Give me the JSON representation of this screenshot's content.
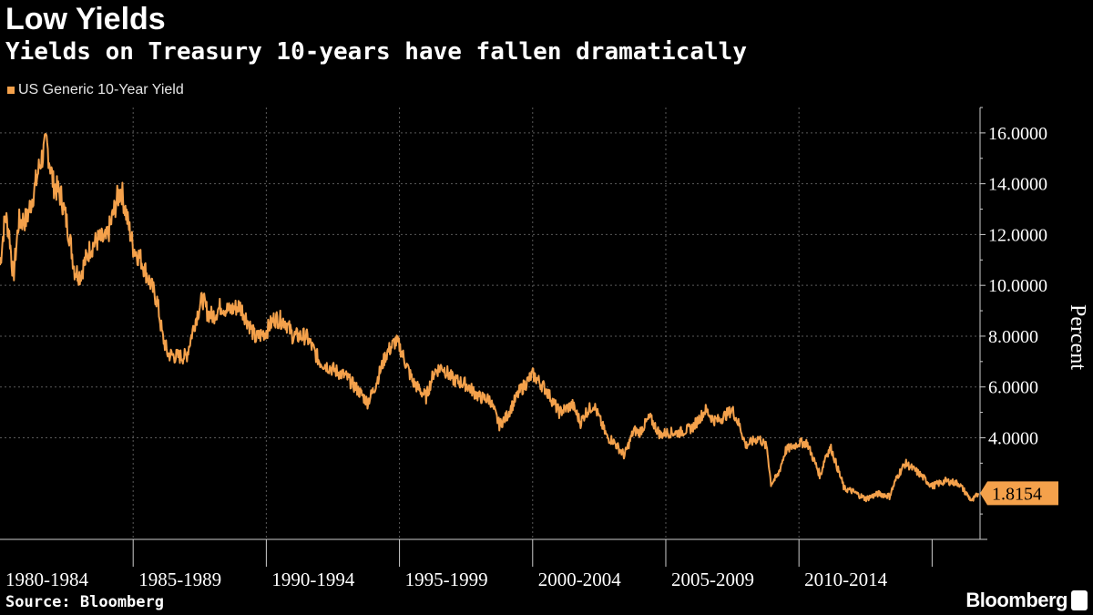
{
  "header": {
    "title": "Low Yields",
    "subtitle": "Yields on Treasury 10-years have fallen dramatically"
  },
  "footer": {
    "source": "Source: Bloomberg",
    "brand": "Bloomberg"
  },
  "colors": {
    "background": "#000000",
    "series": "#f4a14b",
    "grid": "#5a5a5a",
    "text": "#ffffff"
  },
  "chart_data": {
    "type": "line",
    "title": "Low Yields",
    "subtitle": "Yields on Treasury 10-years have fallen dramatically",
    "ylabel": "Percent",
    "ylim": [
      0.0,
      17.0
    ],
    "yticks": [
      4,
      6,
      8,
      10,
      12,
      14,
      16
    ],
    "ytick_labels": [
      "4.0000",
      "6.0000",
      "8.0000",
      "10.0000",
      "12.0000",
      "14.0000",
      "16.0000"
    ],
    "xlim": [
      1980.0,
      2016.8
    ],
    "x_groups": [
      {
        "label": "1980-1984",
        "start": 1980,
        "end": 1985
      },
      {
        "label": "1985-1989",
        "start": 1985,
        "end": 1990
      },
      {
        "label": "1990-1994",
        "start": 1990,
        "end": 1995
      },
      {
        "label": "1995-1999",
        "start": 1995,
        "end": 2000
      },
      {
        "label": "2000-2004",
        "start": 2000,
        "end": 2005
      },
      {
        "label": "2005-2009",
        "start": 2005,
        "end": 2010
      },
      {
        "label": "2010-2014",
        "start": 2010,
        "end": 2015
      }
    ],
    "grid": true,
    "legend": "top-left",
    "series": [
      {
        "name": "US Generic 10-Year Yield",
        "last_value": "1.8154",
        "x": [
          1980.0,
          1980.2,
          1980.35,
          1980.5,
          1980.7,
          1981.0,
          1981.3,
          1981.5,
          1981.75,
          1982.0,
          1982.3,
          1982.6,
          1982.8,
          1983.0,
          1983.4,
          1983.7,
          1984.0,
          1984.4,
          1984.55,
          1984.8,
          1985.0,
          1985.3,
          1985.6,
          1985.9,
          1986.1,
          1986.3,
          1986.6,
          1987.0,
          1987.3,
          1987.6,
          1987.8,
          1988.0,
          1988.3,
          1988.6,
          1989.0,
          1989.3,
          1989.6,
          1990.0,
          1990.3,
          1990.7,
          1991.0,
          1991.5,
          1992.0,
          1992.5,
          1993.0,
          1993.5,
          1993.8,
          1994.0,
          1994.5,
          1994.85,
          1995.0,
          1995.5,
          1996.0,
          1996.3,
          1996.6,
          1997.0,
          1997.5,
          1998.0,
          1998.4,
          1998.75,
          1999.0,
          1999.5,
          2000.0,
          2000.5,
          2001.0,
          2001.5,
          2001.8,
          2002.0,
          2002.3,
          2002.8,
          2003.0,
          2003.45,
          2003.8,
          2004.0,
          2004.4,
          2004.8,
          2005.0,
          2005.5,
          2006.0,
          2006.5,
          2006.8,
          2007.0,
          2007.5,
          2007.8,
          2008.0,
          2008.5,
          2008.8,
          2008.95,
          2009.2,
          2009.5,
          2010.0,
          2010.3,
          2010.8,
          2011.0,
          2011.2,
          2011.7,
          2012.0,
          2012.5,
          2013.0,
          2013.4,
          2013.7,
          2014.0,
          2014.5,
          2015.0,
          2015.5,
          2016.0,
          2016.5,
          2016.75
        ],
        "y": [
          10.8,
          12.8,
          12.0,
          10.3,
          12.5,
          12.6,
          13.8,
          14.8,
          15.6,
          14.0,
          13.5,
          12.0,
          10.6,
          10.4,
          11.5,
          11.8,
          11.8,
          13.4,
          13.8,
          12.5,
          11.5,
          11.0,
          10.2,
          9.4,
          8.0,
          7.3,
          7.2,
          7.2,
          8.5,
          9.5,
          8.9,
          8.8,
          9.2,
          9.0,
          9.2,
          8.6,
          7.9,
          8.2,
          8.7,
          8.6,
          8.0,
          8.0,
          7.0,
          6.7,
          6.4,
          5.8,
          5.4,
          5.8,
          7.3,
          7.8,
          7.6,
          6.2,
          5.6,
          6.6,
          6.8,
          6.3,
          6.1,
          5.6,
          5.5,
          4.5,
          4.8,
          5.8,
          6.5,
          5.9,
          5.0,
          5.3,
          4.6,
          5.0,
          5.3,
          4.0,
          3.9,
          3.3,
          4.3,
          4.2,
          4.8,
          4.1,
          4.2,
          4.2,
          4.4,
          5.1,
          4.7,
          4.7,
          5.1,
          4.4,
          3.7,
          4.0,
          3.6,
          2.2,
          2.5,
          3.5,
          3.8,
          3.8,
          2.5,
          3.3,
          3.6,
          2.0,
          1.9,
          1.6,
          1.8,
          1.7,
          2.5,
          3.0,
          2.6,
          2.1,
          2.3,
          2.2,
          1.5,
          1.8154
        ]
      }
    ]
  }
}
